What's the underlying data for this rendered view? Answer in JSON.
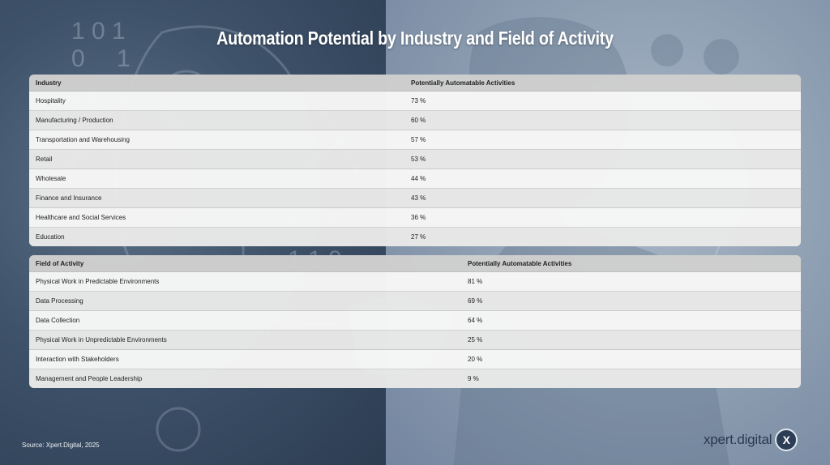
{
  "title": "Automation Potential by Industry and Field of Activity",
  "source": "Source: Xpert.Digital, 2025",
  "brand": {
    "name": "xpert.digital",
    "logo_letter": "X"
  },
  "colors": {
    "left_background": "#3e526a",
    "right_background": "#8b9cb0",
    "header_row": "#c8c8c8",
    "brand_dark": "#2c3d55"
  },
  "chart_data": [
    {
      "type": "table",
      "columns": [
        "Industry",
        "Potentially Automatable Activities"
      ],
      "rows": [
        [
          "Hospitality",
          "73 %"
        ],
        [
          "Manufacturing / Production",
          "60 %"
        ],
        [
          "Transportation and Warehousing",
          "57 %"
        ],
        [
          "Retail",
          "53 %"
        ],
        [
          "Wholesale",
          "44 %"
        ],
        [
          "Finance and Insurance",
          "43 %"
        ],
        [
          "Healthcare and Social Services",
          "36 %"
        ],
        [
          "Education",
          "27 %"
        ]
      ]
    },
    {
      "type": "table",
      "columns": [
        "Field of Activity",
        "Potentially Automatable Activities"
      ],
      "rows": [
        [
          "Physical Work in Predictable Environments",
          "81 %"
        ],
        [
          "Data Processing",
          "69 %"
        ],
        [
          "Data Collection",
          "64 %"
        ],
        [
          "Physical Work in Unpredictable Environments",
          "25 %"
        ],
        [
          "Interaction with Stakeholders",
          "20 %"
        ],
        [
          "Management and People Leadership",
          "9 %"
        ]
      ]
    }
  ]
}
